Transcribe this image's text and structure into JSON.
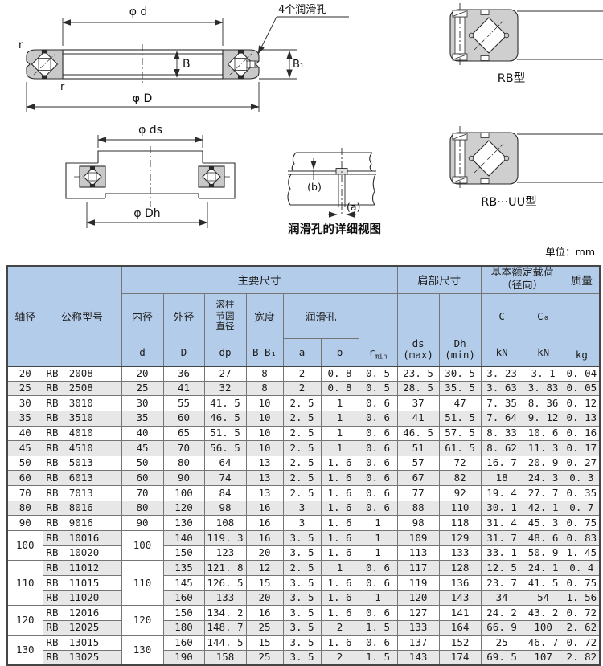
{
  "unit_note": "单位：mm",
  "figures": {
    "fig_main": {
      "dim_bore": "φ d",
      "dim_outer": "φ D",
      "dim_width": "B",
      "dim_width1": "B₁",
      "fillet_top": "r",
      "fillet_bottom": "r",
      "holes_note": "4个润滑孔"
    },
    "fig_mount": {
      "dim_shaft_seat": "φ ds",
      "dim_housing_bore": "φ Dh"
    },
    "fig_detail": {
      "label_b": "(b)",
      "label_a": "(a)",
      "caption": "润滑孔的详细视图"
    },
    "fig_rb": {
      "label": "RB型"
    },
    "fig_rbuu": {
      "label": "RB···UU型"
    }
  },
  "table": {
    "headers": {
      "shaft": "轴径",
      "model": "公称型号",
      "main": "主要尺寸",
      "shoulder": "肩部尺寸",
      "load_line1": "基本额定载荷",
      "load_line2": "（径向）",
      "mass": "质量",
      "bore": "内径",
      "outer": "外径",
      "pitch_l1": "滚柱",
      "pitch_l2": "节圆",
      "pitch_l3": "直径",
      "width": "宽度",
      "grease": "润滑孔",
      "sym_d": "d",
      "sym_D": "D",
      "sym_dp": "dp",
      "sym_B": "B B₁",
      "sym_a": "a",
      "sym_b": "b",
      "sym_r": "r",
      "sym_r_sub": "min",
      "sym_ds": "ds",
      "sym_ds_sub": "(max)",
      "sym_Dh": "Dh",
      "sym_Dh_sub": "(min)",
      "sym_C": "C",
      "sym_C0": "C₀",
      "unit_kN": "kN",
      "unit_kN2": "kN",
      "unit_kg": "kg"
    },
    "groups": [
      {
        "shaft": "20",
        "d": "20",
        "rows": [
          {
            "model": "RB 2008",
            "D": "36",
            "dp": "27",
            "B": "8",
            "a": "2",
            "b": "0. 8",
            "r": "0. 5",
            "ds": "23. 5",
            "Dh": "30. 5",
            "C": "3. 23",
            "C0": "3. 1",
            "kg": "0. 04"
          }
        ]
      },
      {
        "shaft": "25",
        "d": "25",
        "rows": [
          {
            "model": "RB 2508",
            "D": "41",
            "dp": "32",
            "B": "8",
            "a": "2",
            "b": "0. 8",
            "r": "0. 5",
            "ds": "28. 5",
            "Dh": "35. 5",
            "C": "3. 63",
            "C0": "3. 83",
            "kg": "0. 05"
          }
        ]
      },
      {
        "shaft": "30",
        "d": "30",
        "rows": [
          {
            "model": "RB 3010",
            "D": "55",
            "dp": "41. 5",
            "B": "10",
            "a": "2. 5",
            "b": "1",
            "r": "0. 6",
            "ds": "37",
            "Dh": "47",
            "C": "7. 35",
            "C0": "8. 36",
            "kg": "0. 12"
          }
        ]
      },
      {
        "shaft": "35",
        "d": "35",
        "rows": [
          {
            "model": "RB 3510",
            "D": "60",
            "dp": "46. 5",
            "B": "10",
            "a": "2. 5",
            "b": "1",
            "r": "0. 6",
            "ds": "41",
            "Dh": "51. 5",
            "C": "7. 64",
            "C0": "9. 12",
            "kg": "0. 13"
          }
        ]
      },
      {
        "shaft": "40",
        "d": "40",
        "rows": [
          {
            "model": "RB 4010",
            "D": "65",
            "dp": "51. 5",
            "B": "10",
            "a": "2. 5",
            "b": "1",
            "r": "0. 6",
            "ds": "46. 5",
            "Dh": "57. 5",
            "C": "8. 33",
            "C0": "10. 6",
            "kg": "0. 16"
          }
        ]
      },
      {
        "shaft": "45",
        "d": "45",
        "rows": [
          {
            "model": "RB 4510",
            "D": "70",
            "dp": "56. 5",
            "B": "10",
            "a": "2. 5",
            "b": "1",
            "r": "0. 6",
            "ds": "51",
            "Dh": "61. 5",
            "C": "8. 62",
            "C0": "11. 3",
            "kg": "0. 17"
          }
        ]
      },
      {
        "shaft": "50",
        "d": "50",
        "rows": [
          {
            "model": "RB 5013",
            "D": "80",
            "dp": "64",
            "B": "13",
            "a": "2. 5",
            "b": "1. 6",
            "r": "0. 6",
            "ds": "57",
            "Dh": "72",
            "C": "16. 7",
            "C0": "20. 9",
            "kg": "0. 27"
          }
        ]
      },
      {
        "shaft": "60",
        "d": "60",
        "rows": [
          {
            "model": "RB 6013",
            "D": "90",
            "dp": "74",
            "B": "13",
            "a": "2. 5",
            "b": "1. 6",
            "r": "0. 6",
            "ds": "67",
            "Dh": "82",
            "C": "18",
            "C0": "24. 3",
            "kg": "0. 3"
          }
        ]
      },
      {
        "shaft": "70",
        "d": "70",
        "rows": [
          {
            "model": "RB 7013",
            "D": "100",
            "dp": "84",
            "B": "13",
            "a": "2. 5",
            "b": "1. 6",
            "r": "0. 6",
            "ds": "77",
            "Dh": "92",
            "C": "19. 4",
            "C0": "27. 7",
            "kg": "0. 35"
          }
        ]
      },
      {
        "shaft": "80",
        "d": "80",
        "rows": [
          {
            "model": "RB 8016",
            "D": "120",
            "dp": "98",
            "B": "16",
            "a": "3",
            "b": "1. 6",
            "r": "0. 6",
            "ds": "88",
            "Dh": "110",
            "C": "30. 1",
            "C0": "42. 1",
            "kg": "0. 7"
          }
        ]
      },
      {
        "shaft": "90",
        "d": "90",
        "rows": [
          {
            "model": "RB 9016",
            "D": "130",
            "dp": "108",
            "B": "16",
            "a": "3",
            "b": "1. 6",
            "r": "1",
            "ds": "98",
            "Dh": "118",
            "C": "31. 4",
            "C0": "45. 3",
            "kg": "0. 75"
          }
        ]
      },
      {
        "shaft": "100",
        "d": "100",
        "rows": [
          {
            "model": "RB 10016",
            "D": "140",
            "dp": "119. 3",
            "B": "16",
            "a": "3. 5",
            "b": "1. 6",
            "r": "1",
            "ds": "109",
            "Dh": "129",
            "C": "31. 7",
            "C0": "48. 6",
            "kg": "0. 83"
          },
          {
            "model": "RB 10020",
            "D": "150",
            "dp": "123",
            "B": "20",
            "a": "3. 5",
            "b": "1. 6",
            "r": "1",
            "ds": "113",
            "Dh": "133",
            "C": "33. 1",
            "C0": "50. 9",
            "kg": "1. 45"
          }
        ]
      },
      {
        "shaft": "110",
        "d": "110",
        "rows": [
          {
            "model": "RB 11012",
            "D": "135",
            "dp": "121. 8",
            "B": "12",
            "a": "2. 5",
            "b": "1",
            "r": "0. 6",
            "ds": "117",
            "Dh": "128",
            "C": "12. 5",
            "C0": "24. 1",
            "kg": "0. 4"
          },
          {
            "model": "RB 11015",
            "D": "145",
            "dp": "126. 5",
            "B": "15",
            "a": "3. 5",
            "b": "1. 6",
            "r": "0. 6",
            "ds": "119",
            "Dh": "136",
            "C": "23. 7",
            "C0": "41. 5",
            "kg": "0. 75"
          },
          {
            "model": "RB 11020",
            "D": "160",
            "dp": "133",
            "B": "20",
            "a": "3. 5",
            "b": "1. 6",
            "r": "1",
            "ds": "120",
            "Dh": "143",
            "C": "34",
            "C0": "54",
            "kg": "1. 56"
          }
        ]
      },
      {
        "shaft": "120",
        "d": "120",
        "rows": [
          {
            "model": "RB 12016",
            "D": "150",
            "dp": "134. 2",
            "B": "16",
            "a": "3. 5",
            "b": "1. 6",
            "r": "0. 6",
            "ds": "127",
            "Dh": "141",
            "C": "24. 2",
            "C0": "43. 2",
            "kg": "0. 72"
          },
          {
            "model": "RB 12025",
            "D": "180",
            "dp": "148. 7",
            "B": "25",
            "a": "3. 5",
            "b": "2",
            "r": "1. 5",
            "ds": "133",
            "Dh": "164",
            "C": "66. 9",
            "C0": "100",
            "kg": "2. 62"
          }
        ]
      },
      {
        "shaft": "130",
        "d": "130",
        "rows": [
          {
            "model": "RB 13015",
            "D": "160",
            "dp": "144. 5",
            "B": "15",
            "a": "3. 5",
            "b": "1. 6",
            "r": "0. 6",
            "ds": "137",
            "Dh": "152",
            "C": "25",
            "C0": "46. 7",
            "kg": "0. 72"
          },
          {
            "model": "RB 13025",
            "D": "190",
            "dp": "158",
            "B": "25",
            "a": "3. 5",
            "b": "2",
            "r": "1. 5",
            "ds": "143",
            "Dh": "174",
            "C": "69. 5",
            "C0": "107",
            "kg": "2. 82"
          }
        ]
      }
    ]
  },
  "colors": {
    "header_bg": "#b3cce9",
    "stripe": "#e7e7e7",
    "border_dark": "#4a4a4a",
    "border": "#757575",
    "drawing_gray": "#c9c9c9",
    "line": "#2b2b2b"
  }
}
